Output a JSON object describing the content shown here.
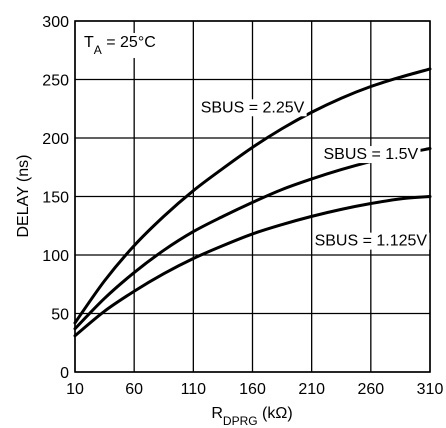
{
  "chart_data": {
    "type": "line",
    "title": "",
    "xlabel": {
      "main": "R",
      "sub": "DPRG",
      "unit": " (kΩ)"
    },
    "ylabel": "DELAY (ns)",
    "xlim": [
      10,
      310
    ],
    "ylim": [
      0,
      300
    ],
    "x_ticks": [
      10,
      60,
      110,
      160,
      210,
      260,
      310
    ],
    "y_ticks": [
      0,
      50,
      100,
      150,
      200,
      250,
      300
    ],
    "grid": true,
    "condition": {
      "main": "T",
      "sub": "A",
      "rest": " = 25°C"
    },
    "series": [
      {
        "name": "SBUS = 2.25V",
        "x": [
          10,
          35,
          60,
          85,
          110,
          135,
          160,
          185,
          210,
          235,
          260,
          285,
          310
        ],
        "values": [
          42,
          78,
          108,
          133,
          155,
          174,
          192,
          208,
          222,
          234,
          244,
          252,
          259
        ]
      },
      {
        "name": "SBUS = 1.5V",
        "x": [
          10,
          35,
          60,
          85,
          110,
          135,
          160,
          185,
          210,
          235,
          260,
          285,
          310
        ],
        "values": [
          37,
          63,
          85,
          104,
          120,
          133,
          145,
          156,
          165,
          173,
          180,
          186,
          191
        ]
      },
      {
        "name": "SBUS = 1.125V",
        "x": [
          10,
          35,
          60,
          85,
          110,
          135,
          160,
          185,
          210,
          235,
          260,
          285,
          310
        ],
        "values": [
          31,
          52,
          69,
          84,
          97,
          108,
          118,
          126,
          133,
          139,
          144,
          148,
          150
        ]
      }
    ]
  }
}
